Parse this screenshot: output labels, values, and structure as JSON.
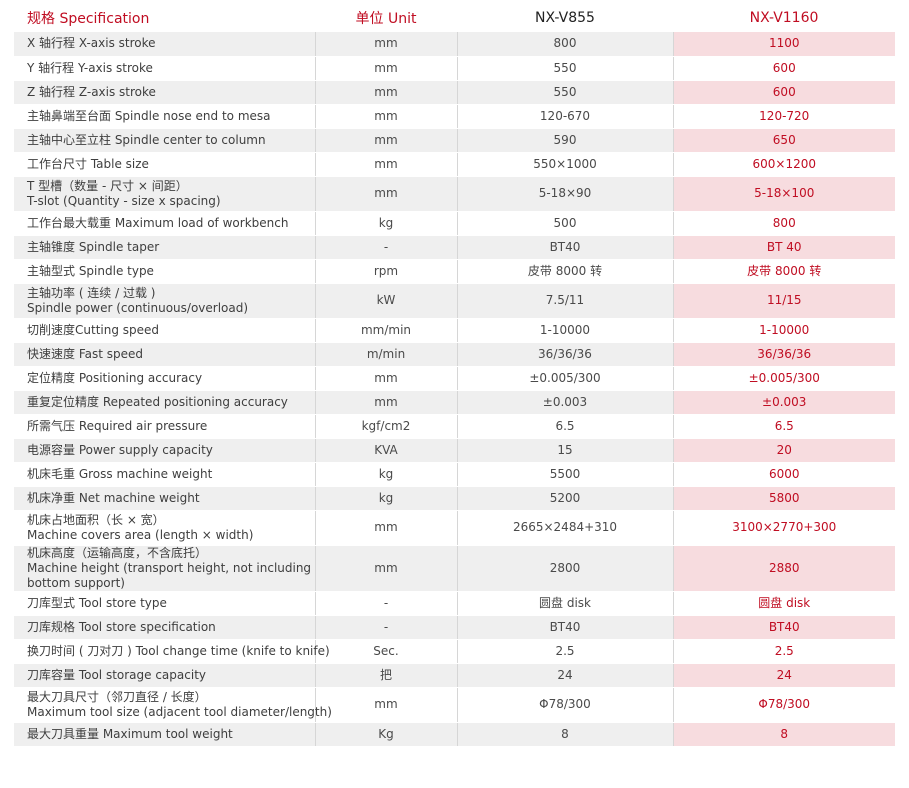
{
  "colors": {
    "accent_red": "#c00d22",
    "row_gray": "#efefef",
    "row_pink": "#f7dcdf"
  },
  "header": {
    "spec": "规格 Specification",
    "unit": "单位 Unit",
    "model1": "NX-V855",
    "model2": "NX-V1160"
  },
  "rows": [
    {
      "name": [
        "X 轴行程 X-axis stroke"
      ],
      "unit": "mm",
      "v855": "800",
      "v1160": "1100"
    },
    {
      "name": [
        "Y 轴行程 Y-axis stroke"
      ],
      "unit": "mm",
      "v855": "550",
      "v1160": "600"
    },
    {
      "name": [
        "Z 轴行程 Z-axis stroke"
      ],
      "unit": "mm",
      "v855": "550",
      "v1160": "600"
    },
    {
      "name": [
        "主轴鼻端至台面 Spindle nose end to mesa"
      ],
      "unit": "mm",
      "v855": "120-670",
      "v1160": "120-720"
    },
    {
      "name": [
        "主轴中心至立柱 Spindle center to column"
      ],
      "unit": "mm",
      "v855": "590",
      "v1160": "650"
    },
    {
      "name": [
        "工作台尺寸 Table size"
      ],
      "unit": "mm",
      "v855": "550×1000",
      "v1160": "600×1200"
    },
    {
      "name": [
        "T 型槽（数量 - 尺寸 × 间距）",
        "T-slot (Quantity - size x spacing)"
      ],
      "unit": "mm",
      "v855": "5-18×90",
      "v1160": "5-18×100"
    },
    {
      "name": [
        "工作台最大载重 Maximum load of workbench"
      ],
      "unit": "kg",
      "v855": "500",
      "v1160": "800"
    },
    {
      "name": [
        "主轴锥度 Spindle taper"
      ],
      "unit": "-",
      "v855": "BT40",
      "v1160": "BT 40"
    },
    {
      "name": [
        "主轴型式 Spindle type"
      ],
      "unit": "rpm",
      "v855": "皮带 8000 转",
      "v1160": "皮带 8000 转"
    },
    {
      "name": [
        "主轴功率 ( 连续 / 过载 )",
        "Spindle power (continuous/overload)"
      ],
      "unit": "kW",
      "v855": "7.5/11",
      "v1160": "11/15"
    },
    {
      "name": [
        "切削速度Cutting speed"
      ],
      "unit": "mm/min",
      "v855": "1-10000",
      "v1160": "1-10000"
    },
    {
      "name": [
        "快速速度 Fast speed"
      ],
      "unit": "m/min",
      "v855": "36/36/36",
      "v1160": "36/36/36"
    },
    {
      "name": [
        "定位精度 Positioning accuracy"
      ],
      "unit": "mm",
      "v855": "±0.005/300",
      "v1160": "±0.005/300"
    },
    {
      "name": [
        "重复定位精度 Repeated positioning accuracy"
      ],
      "unit": "mm",
      "v855": "±0.003",
      "v1160": "±0.003"
    },
    {
      "name": [
        "所需气压 Required air pressure"
      ],
      "unit": "kgf/cm2",
      "v855": "6.5",
      "v1160": "6.5"
    },
    {
      "name": [
        "电源容量 Power supply capacity"
      ],
      "unit": "KVA",
      "v855": "15",
      "v1160": "20"
    },
    {
      "name": [
        "机床毛重 Gross machine weight"
      ],
      "unit": "kg",
      "v855": "5500",
      "v1160": "6000"
    },
    {
      "name": [
        "机床净重 Net machine weight"
      ],
      "unit": "kg",
      "v855": "5200",
      "v1160": "5800"
    },
    {
      "name": [
        "机床占地面积（长 × 宽）",
        "Machine covers area (length × width)"
      ],
      "unit": "mm",
      "v855": "2665×2484+310",
      "v1160": "3100×2770+300"
    },
    {
      "name": [
        "机床高度（运输高度，不含底托）",
        "Machine height (transport height, not including",
        "bottom support)"
      ],
      "unit": "mm",
      "v855": "2800",
      "v1160": "2880"
    },
    {
      "name": [
        "刀库型式 Tool store type"
      ],
      "unit": "-",
      "v855": "圆盘 disk",
      "v1160": "圆盘 disk"
    },
    {
      "name": [
        "刀库规格 Tool store specification"
      ],
      "unit": "-",
      "v855": "BT40",
      "v1160": "BT40"
    },
    {
      "name": [
        "换刀时间 ( 刀对刀 ) Tool change time (knife to knife)"
      ],
      "unit": "Sec.",
      "v855": "2.5",
      "v1160": "2.5"
    },
    {
      "name": [
        "刀库容量 Tool storage capacity"
      ],
      "unit": "把",
      "v855": "24",
      "v1160": "24"
    },
    {
      "name": [
        "最大刀具尺寸（邻刀直径 / 长度）",
        "Maximum tool size (adjacent tool diameter/length)"
      ],
      "unit": "mm",
      "v855": "Φ78/300",
      "v1160": "Φ78/300"
    },
    {
      "name": [
        "最大刀具重量 Maximum tool weight"
      ],
      "unit": "Kg",
      "v855": "8",
      "v1160": "8"
    }
  ]
}
